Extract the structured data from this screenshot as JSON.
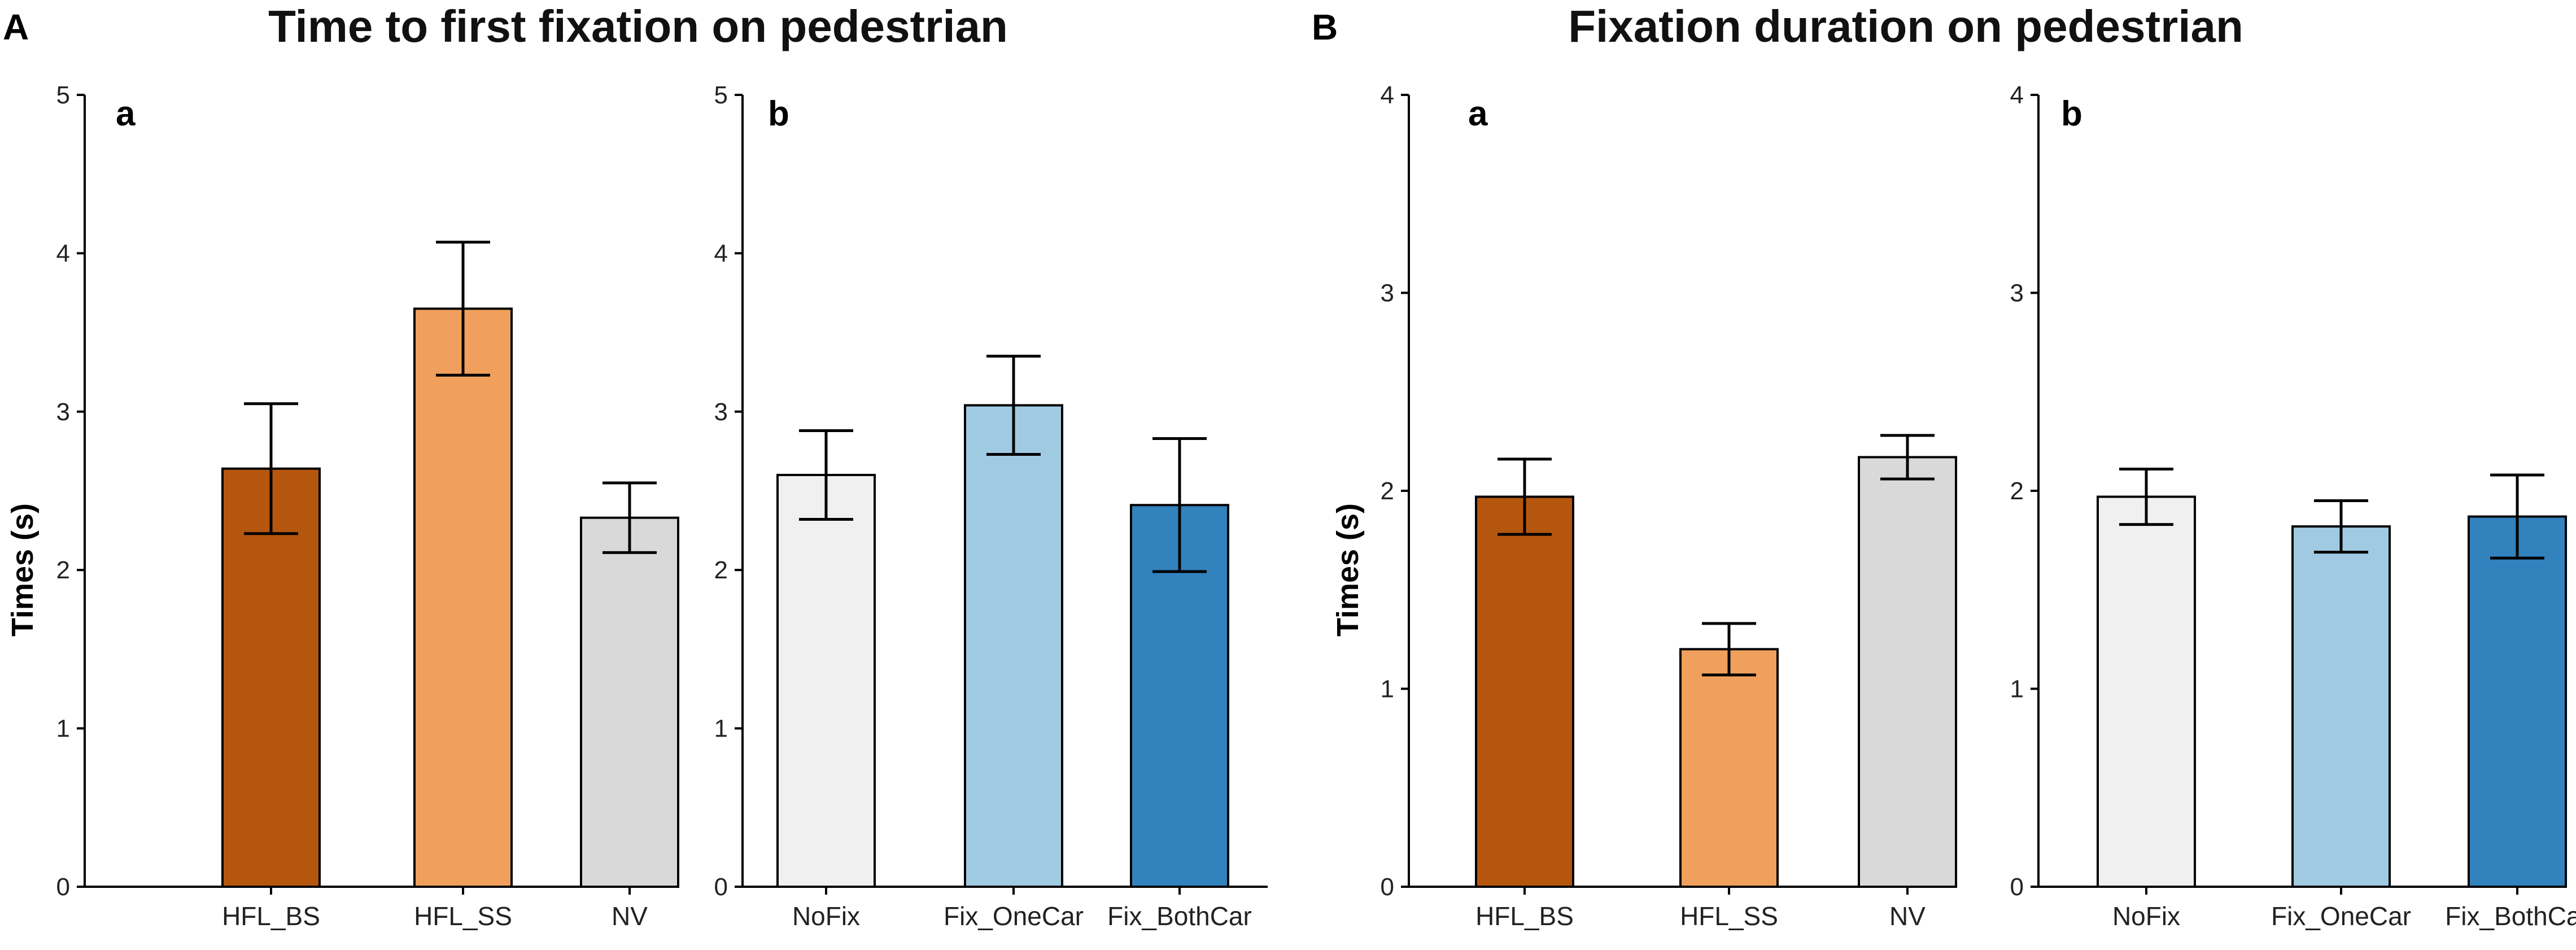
{
  "figures": [
    {
      "panel_label": "A",
      "title": "Time to first fixation on pedestrian"
    },
    {
      "panel_label": "B",
      "title": "Fixation duration on pedestrian"
    }
  ],
  "chart_data": [
    {
      "type": "bar",
      "figure": "A",
      "subpanel": "a",
      "ylabel": "Times (s)",
      "xlabel": "",
      "ylim": [
        0,
        5
      ],
      "yticks": [
        "0",
        "1",
        "2",
        "3",
        "4",
        "5"
      ],
      "categories": [
        "HFL_BS",
        "HFL_SS",
        "NV"
      ],
      "values": [
        2.64,
        3.65,
        2.33
      ],
      "error": [
        0.41,
        0.42,
        0.22
      ],
      "colors": [
        "#b5560e",
        "#f0a05c",
        "#d9d9d9"
      ]
    },
    {
      "type": "bar",
      "figure": "A",
      "subpanel": "b",
      "ylabel": "",
      "xlabel": "",
      "ylim": [
        0,
        5
      ],
      "yticks": [
        "0",
        "1",
        "2",
        "3",
        "4",
        "5"
      ],
      "categories": [
        "NoFix",
        "Fix_OneCar",
        "Fix_BothCar"
      ],
      "values": [
        2.6,
        3.04,
        2.41
      ],
      "error": [
        0.28,
        0.31,
        0.42
      ],
      "colors": [
        "#f0f0f0",
        "#9fcae2",
        "#3282be"
      ]
    },
    {
      "type": "bar",
      "figure": "B",
      "subpanel": "a",
      "ylabel": "Times (s)",
      "xlabel": "",
      "ylim": [
        0,
        4
      ],
      "yticks": [
        "0",
        "1",
        "2",
        "3",
        "4"
      ],
      "categories": [
        "HFL_BS",
        "HFL_SS",
        "NV"
      ],
      "values": [
        1.97,
        1.2,
        2.17
      ],
      "error": [
        0.19,
        0.13,
        0.11
      ],
      "colors": [
        "#b5560e",
        "#f0a05c",
        "#d9d9d9"
      ]
    },
    {
      "type": "bar",
      "figure": "B",
      "subpanel": "b",
      "ylabel": "",
      "xlabel": "",
      "ylim": [
        0,
        4
      ],
      "yticks": [
        "0",
        "1",
        "2",
        "3",
        "4"
      ],
      "categories": [
        "NoFix",
        "Fix_OneCar",
        "Fix_BothCar"
      ],
      "values": [
        1.97,
        1.82,
        1.87
      ],
      "error": [
        0.14,
        0.13,
        0.21
      ],
      "colors": [
        "#f0f0f0",
        "#9fcae2",
        "#3282be"
      ]
    }
  ]
}
